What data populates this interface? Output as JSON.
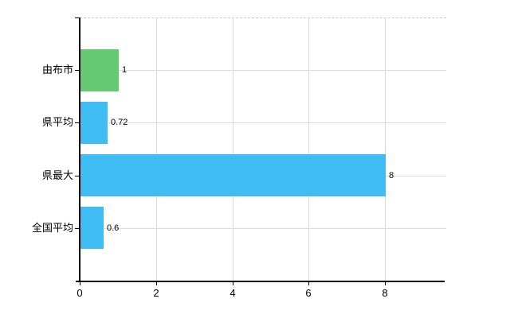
{
  "chart_data": {
    "type": "bar",
    "orientation": "horizontal",
    "title": "",
    "xlabel": "",
    "ylabel": "",
    "categories": [
      "由布市",
      "県平均",
      "県最大",
      "全国平均"
    ],
    "values": [
      1,
      0.72,
      8,
      0.6
    ],
    "value_labels": [
      "1",
      "0.72",
      "8",
      "0.6"
    ],
    "bar_colors": [
      "#65ca71",
      "#3fbdf3",
      "#3fbdf3",
      "#3fbdf3"
    ],
    "x_tick_values": [
      0,
      2,
      4,
      6,
      8
    ],
    "x_tick_labels": [
      "0",
      "2",
      "4",
      "6",
      "8"
    ],
    "xlim": [
      0,
      9.57
    ],
    "grid": true,
    "legend": false,
    "colors": {
      "background": "#ffffff",
      "axis": "#000000",
      "gridline": "#dbdbdb",
      "top_border": "#c9c9c9",
      "text": "#000000",
      "green_bar": "#65ca71",
      "blue_bar": "#3fbdf3"
    }
  }
}
